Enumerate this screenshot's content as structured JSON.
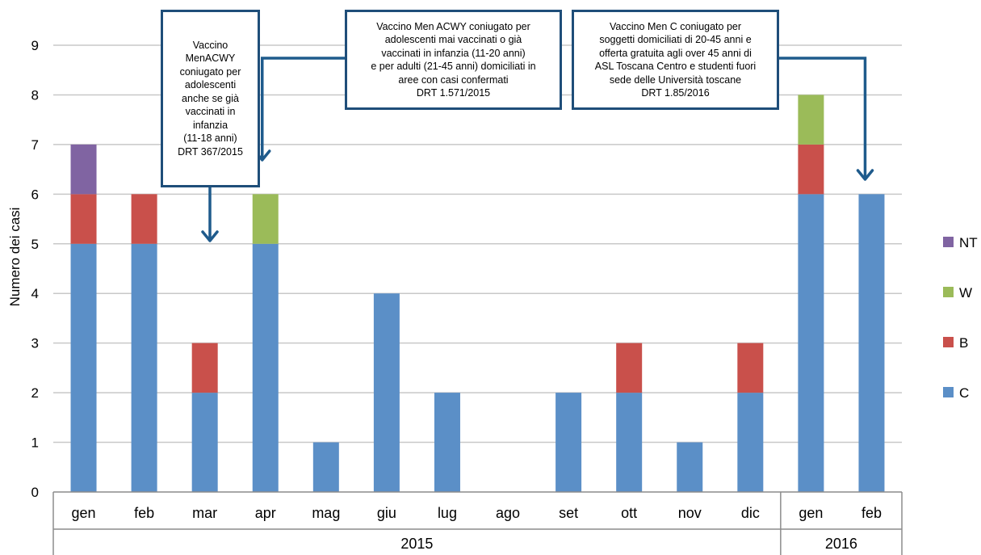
{
  "chart_data": {
    "type": "bar",
    "stacked": true,
    "ylabel": "Numero dei casi",
    "ylim": [
      0,
      9
    ],
    "yticks": [
      0,
      1,
      2,
      3,
      4,
      5,
      6,
      7,
      8,
      9
    ],
    "grid": true,
    "legend_position": "right",
    "categories": [
      "gen",
      "feb",
      "mar",
      "apr",
      "mag",
      "giu",
      "lug",
      "ago",
      "set",
      "ott",
      "nov",
      "dic",
      "gen",
      "feb"
    ],
    "groups": [
      {
        "label": "2015",
        "count": 12
      },
      {
        "label": "2016",
        "count": 2
      }
    ],
    "series": [
      {
        "name": "C",
        "color": "#5b8fc7",
        "values": [
          5,
          5,
          2,
          5,
          1,
          4,
          2,
          0,
          2,
          2,
          1,
          2,
          6,
          6
        ]
      },
      {
        "name": "B",
        "color": "#c9504b",
        "values": [
          1,
          1,
          1,
          0,
          0,
          0,
          0,
          0,
          0,
          1,
          0,
          1,
          1,
          0
        ]
      },
      {
        "name": "W",
        "color": "#9bbb59",
        "values": [
          0,
          0,
          0,
          1,
          0,
          0,
          0,
          0,
          0,
          0,
          0,
          0,
          1,
          0
        ]
      },
      {
        "name": "NT",
        "color": "#8064a2",
        "values": [
          1,
          0,
          0,
          0,
          0,
          0,
          0,
          0,
          0,
          0,
          0,
          0,
          0,
          0
        ]
      }
    ],
    "legend_order": [
      "NT",
      "W",
      "B",
      "C"
    ],
    "annotations": [
      {
        "lines": [
          "Vaccino",
          "MenACWY",
          "coniugato per",
          "adolescenti",
          "anche se già",
          "vaccinati in",
          "infanzia",
          "(11-18 anni)",
          "DRT 367/2015"
        ],
        "target_category_index": 2
      },
      {
        "lines": [
          "Vaccino Men ACWY coniugato per",
          "adolescenti  mai vaccinati o già",
          "vaccinati in infanzia (11-20 anni)",
          "e per adulti (21-45 anni) domiciliati in",
          "aree con casi confermati",
          "DRT 1.571/2015"
        ],
        "target_category_index": 3
      },
      {
        "lines": [
          "Vaccino Men C coniugato per",
          "soggetti  domiciliati di 20-45 anni e",
          "offerta gratuita agli over 45 anni di",
          "ASL Toscana Centro e studenti fuori",
          "sede delle Università toscane",
          "DRT 1.85/2016"
        ],
        "target_category_index": 13
      }
    ]
  }
}
